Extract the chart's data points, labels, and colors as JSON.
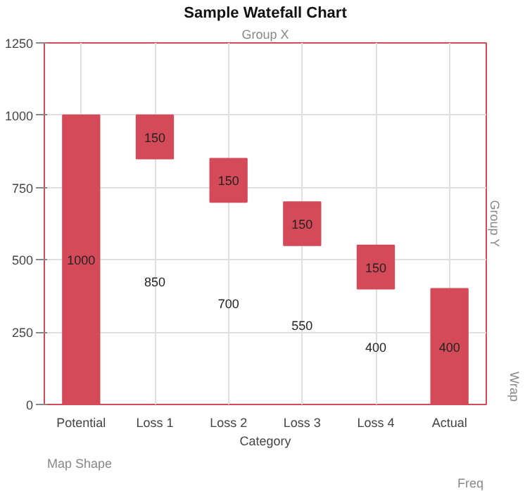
{
  "chart_data": {
    "type": "bar",
    "title": "Sample Watefall Chart",
    "xlabel": "Category",
    "categories": [
      "Potential",
      "Loss 1",
      "Loss 2",
      "Loss 3",
      "Loss 4",
      "Actual"
    ],
    "values": [
      1000,
      150,
      150,
      150,
      150,
      400
    ],
    "base": [
      0,
      850,
      700,
      550,
      400,
      0
    ],
    "color": "#d44a58",
    "data_labels": true,
    "ylim": [
      0,
      1250
    ],
    "yticks": [
      0,
      250,
      500,
      750,
      1000,
      1250
    ],
    "grid": true,
    "annotations": [
      "850",
      "700",
      "550",
      "400",
      "Group X",
      "Group Y",
      "Wrap",
      "Map Shape",
      "Freq"
    ]
  }
}
